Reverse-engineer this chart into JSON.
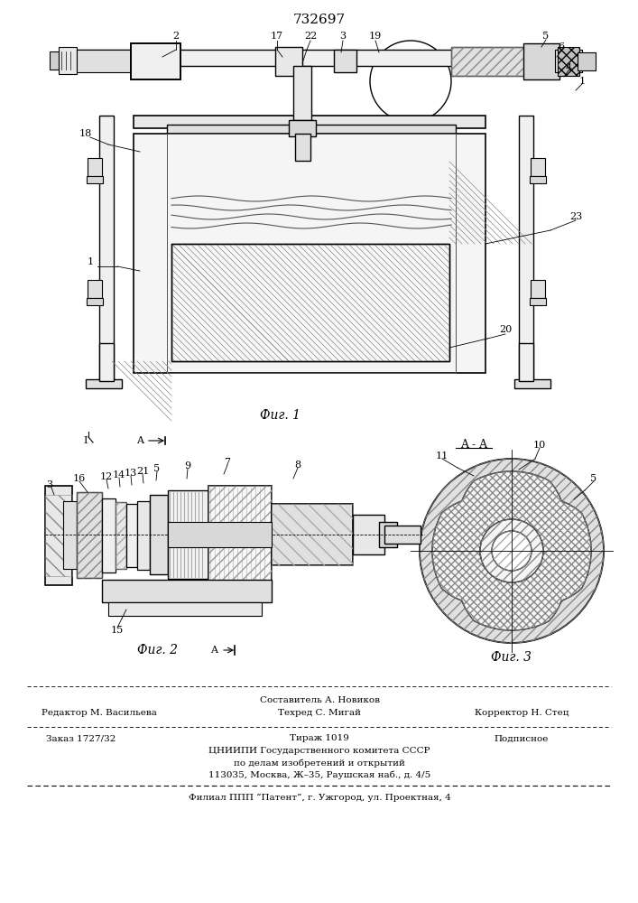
{
  "patent_number": "732697",
  "bg": "#ffffff",
  "lc": "#000000",
  "fig1_label": "Фиг. 1",
  "fig2_label": "Фиг. 2",
  "fig3_label": "Фиг. 3",
  "aa_label": "A - A",
  "footer_sostav": "Составитель А. Новиков",
  "footer_red": "Редактор М. Васильева",
  "footer_teh": "Техред С. Мигай",
  "footer_kor": "Корректор Н. Стец",
  "footer_zak": "Заказ 1727/32",
  "footer_tir": "Тираж 1019",
  "footer_pod": "Подписное",
  "footer_org": "ЦНИИПИ Государственного комитета СССР",
  "footer_org2": "по делам изобретений и открытий",
  "footer_addr": "113035, Москва, Ж–35, Раушская наб., д. 4/5",
  "footer_fil": "Филиал ППП “Патент”, г. Ужгород, ул. Проектная, 4"
}
